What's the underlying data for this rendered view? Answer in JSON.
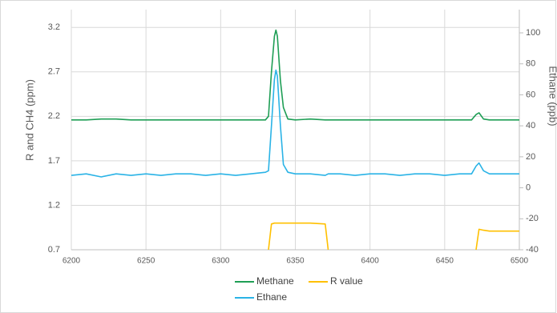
{
  "chart_data": {
    "type": "line",
    "y_label": "R and CH4 (ppm)",
    "y2_label": "Ethane (ppb)",
    "x": [
      6200,
      6210,
      6220,
      6230,
      6240,
      6250,
      6260,
      6270,
      6280,
      6290,
      6300,
      6310,
      6320,
      6330,
      6332,
      6334,
      6336,
      6337,
      6338,
      6340,
      6342,
      6345,
      6350,
      6360,
      6370,
      6372,
      6380,
      6390,
      6400,
      6410,
      6420,
      6430,
      6440,
      6450,
      6460,
      6468,
      6471,
      6473,
      6476,
      6480,
      6490,
      6500
    ],
    "series": [
      {
        "name": "Methane",
        "color": "#1e9e55",
        "axis": "y",
        "values": [
          2.16,
          2.16,
          2.17,
          2.17,
          2.16,
          2.16,
          2.16,
          2.16,
          2.16,
          2.16,
          2.16,
          2.16,
          2.16,
          2.16,
          2.2,
          2.7,
          3.1,
          3.17,
          3.1,
          2.6,
          2.3,
          2.17,
          2.16,
          2.17,
          2.16,
          2.16,
          2.16,
          2.16,
          2.16,
          2.16,
          2.16,
          2.16,
          2.16,
          2.16,
          2.16,
          2.16,
          2.22,
          2.24,
          2.17,
          2.16,
          2.16,
          2.16
        ]
      },
      {
        "name": "R value",
        "color": "#ffc000",
        "axis": "y",
        "values": [
          null,
          null,
          null,
          null,
          null,
          null,
          null,
          null,
          null,
          null,
          null,
          null,
          null,
          null,
          0.7,
          0.99,
          1.0,
          1.0,
          1.0,
          1.0,
          1.0,
          1.0,
          1.0,
          1.0,
          0.99,
          0.7,
          null,
          null,
          null,
          null,
          null,
          null,
          null,
          null,
          null,
          null,
          0.7,
          0.93,
          0.92,
          0.91,
          0.91,
          0.91
        ]
      },
      {
        "name": "Ethane",
        "color": "#2ab3e6",
        "axis": "y2",
        "values": [
          8,
          9,
          7,
          9,
          8,
          9,
          8,
          9,
          9,
          8,
          9,
          8,
          9,
          10,
          11,
          40,
          70,
          76,
          72,
          40,
          15,
          10,
          9,
          9,
          8,
          9,
          9,
          8,
          9,
          9,
          8,
          9,
          9,
          8,
          9,
          9,
          14,
          16,
          11,
          9,
          9,
          9
        ]
      }
    ],
    "xlim": [
      6200,
      6500
    ],
    "xticks": [
      6200,
      6250,
      6300,
      6350,
      6400,
      6450,
      6500
    ],
    "ylim": [
      0.7,
      3.4
    ],
    "yticks": [
      0.7,
      1.2,
      1.7,
      2.2,
      2.7,
      3.2
    ],
    "y2lim": [
      -40,
      115
    ],
    "y2ticks": [
      -40,
      -20,
      0,
      20,
      40,
      60,
      80,
      100
    ],
    "grid": true,
    "legend": "bottom"
  }
}
